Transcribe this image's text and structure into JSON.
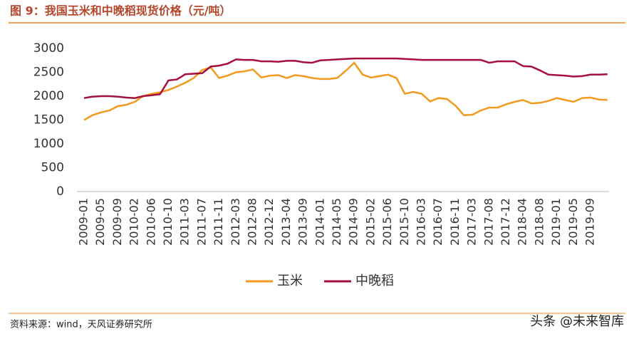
{
  "chart_data": {
    "type": "line",
    "title": "图 9：我国玉米和中晚稻现货价格（元/吨）",
    "source": "资料来源：wind，天风证券研究所",
    "watermark": "头条 @未来智库",
    "categories": [
      "2009-01",
      null,
      "2009-05",
      null,
      "2009-09",
      null,
      "2010-02",
      null,
      "2010-06",
      null,
      "2010-10",
      null,
      "2011-03",
      null,
      "2011-07",
      null,
      "2011-11",
      null,
      "2012-03",
      null,
      "2012-08",
      null,
      "2012-12",
      null,
      "2013-04",
      null,
      "2013-09",
      null,
      "2014-01",
      null,
      "2014-05",
      null,
      "2014-09",
      null,
      "2015-02",
      null,
      "2015-06",
      null,
      "2015-10",
      null,
      "2016-03",
      null,
      "2016-07",
      null,
      "2016-11",
      null,
      "2017-03",
      null,
      "2017-08",
      null,
      "2017-12",
      null,
      "2018-04",
      null,
      "2018-08",
      null,
      "2019-01",
      null,
      "2019-05",
      null,
      "2019-09",
      null,
      null
    ],
    "series": [
      {
        "name": "玉米",
        "color": "#f39a1e",
        "values": [
          1500,
          1600,
          1660,
          1700,
          1790,
          1820,
          1880,
          2000,
          2050,
          2080,
          2130,
          2200,
          2280,
          2380,
          2550,
          2600,
          2380,
          2430,
          2500,
          2520,
          2560,
          2390,
          2430,
          2440,
          2380,
          2440,
          2420,
          2380,
          2360,
          2360,
          2380,
          2530,
          2700,
          2450,
          2390,
          2420,
          2450,
          2380,
          2050,
          2090,
          2050,
          1890,
          1960,
          1940,
          1800,
          1600,
          1610,
          1700,
          1760,
          1760,
          1830,
          1880,
          1920,
          1850,
          1860,
          1900,
          1960,
          1920,
          1880,
          1960,
          1970,
          1930,
          1920
        ]
      },
      {
        "name": "中晚稻",
        "color": "#a50f3c",
        "values": [
          1960,
          1990,
          2000,
          2000,
          1990,
          1970,
          1960,
          2000,
          2020,
          2040,
          2330,
          2350,
          2460,
          2470,
          2480,
          2620,
          2640,
          2680,
          2770,
          2760,
          2760,
          2730,
          2730,
          2720,
          2740,
          2740,
          2710,
          2700,
          2750,
          2760,
          2770,
          2780,
          2790,
          2790,
          2790,
          2790,
          2790,
          2790,
          2780,
          2770,
          2760,
          2760,
          2760,
          2760,
          2760,
          2760,
          2760,
          2760,
          2700,
          2730,
          2730,
          2730,
          2630,
          2620,
          2540,
          2450,
          2440,
          2430,
          2410,
          2420,
          2450,
          2450,
          2460
        ]
      }
    ],
    "ylim": [
      0,
      3000
    ],
    "yticks": [
      0,
      500,
      1000,
      1500,
      2000,
      2500,
      3000
    ],
    "grid": false,
    "legend": "bottom"
  }
}
